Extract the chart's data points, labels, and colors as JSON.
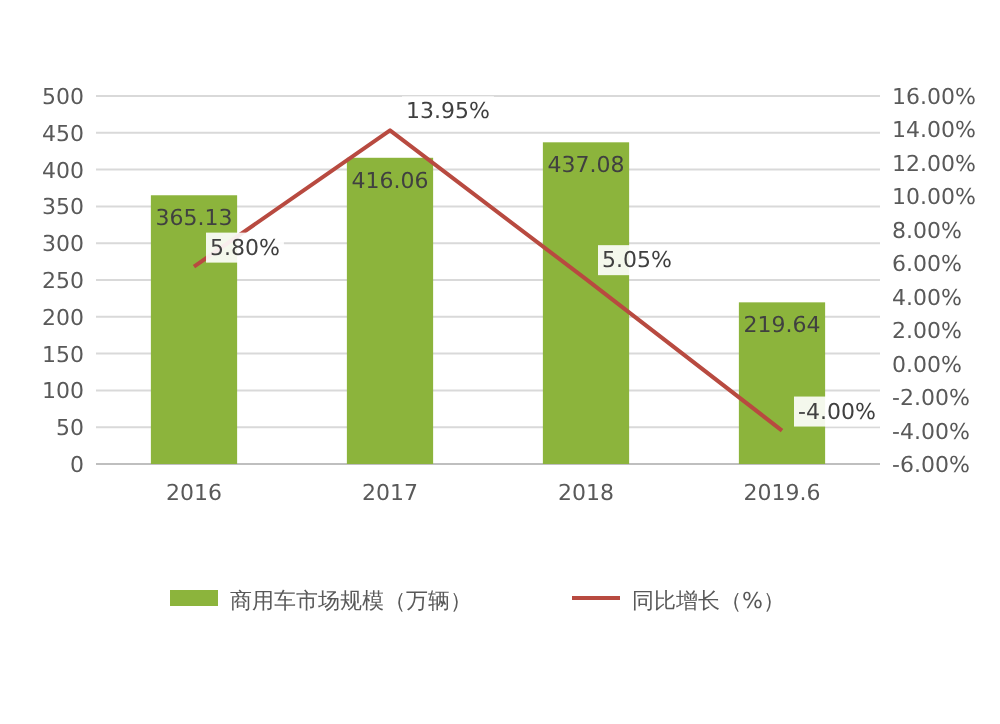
{
  "chart_data": {
    "type": "bar",
    "categories": [
      "2016",
      "2017",
      "2018",
      "2019.6"
    ],
    "series": [
      {
        "name": "商用车市场规模（万辆）",
        "color": "#8cb43c",
        "values": [
          365.13,
          416.06,
          437.08,
          219.64
        ],
        "value_labels": [
          "365.13",
          "416.06",
          "437.08",
          "219.64"
        ]
      },
      {
        "name": "同比增长（%）",
        "type": "line",
        "axis": "y2",
        "color": "#b84a40",
        "values": [
          5.8,
          13.95,
          5.05,
          -4.0
        ],
        "value_labels": [
          "5.80%",
          "13.95%",
          "5.05%",
          "-4.00%"
        ]
      }
    ],
    "ylim": [
      0,
      500
    ],
    "yticks": [
      0,
      50,
      100,
      150,
      200,
      250,
      300,
      350,
      400,
      450,
      500
    ],
    "y2lim": [
      -6,
      16
    ],
    "y2ticks": [
      {
        "value": -6,
        "label": "-6.00%"
      },
      {
        "value": -4,
        "label": "-4.00%"
      },
      {
        "value": -2,
        "label": "-2.00%"
      },
      {
        "value": 0,
        "label": "0.00%"
      },
      {
        "value": 2,
        "label": "2.00%"
      },
      {
        "value": 4,
        "label": "4.00%"
      },
      {
        "value": 6,
        "label": "6.00%"
      },
      {
        "value": 8,
        "label": "8.00%"
      },
      {
        "value": 10,
        "label": "10.00%"
      },
      {
        "value": 12,
        "label": "12.00%"
      },
      {
        "value": 14,
        "label": "14.00%"
      },
      {
        "value": 16,
        "label": "16.00%"
      }
    ],
    "grid": "y",
    "legend": "bottom"
  }
}
